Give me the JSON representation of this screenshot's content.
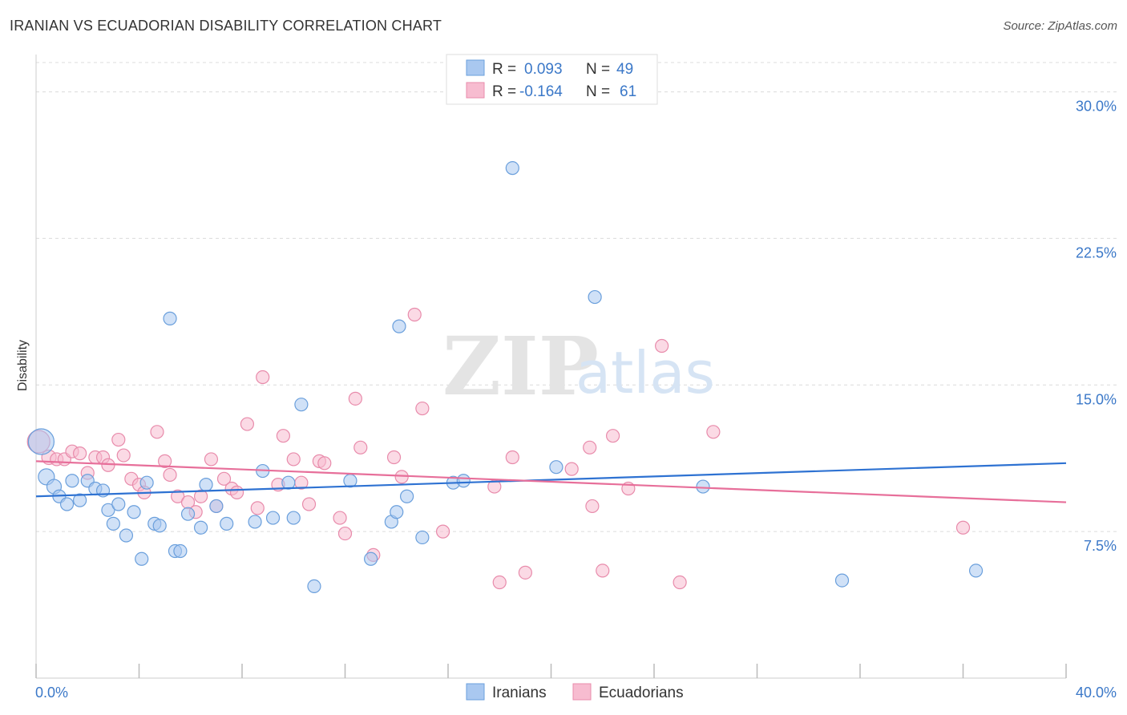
{
  "title": "IRANIAN VS ECUADORIAN DISABILITY CORRELATION CHART",
  "source": "Source: ZipAtlas.com",
  "watermark": {
    "zip": "ZIP",
    "atlas": "atlas"
  },
  "colors": {
    "blue_fill": "#a9c8f0",
    "blue_stroke": "#6a9fdc",
    "blue_line": "#2e72d2",
    "pink_fill": "#f7bcd0",
    "pink_stroke": "#e88bab",
    "pink_line": "#e76f9a",
    "tick_text": "#3b78c8"
  },
  "legend": {
    "rows": [
      {
        "r_label": "R =",
        "r_value": "0.093",
        "n_label": "N =",
        "n_value": "49"
      },
      {
        "r_label": "R =",
        "r_value": "-0.164",
        "n_label": "N =",
        "n_value": "61"
      }
    ]
  },
  "chart_data": {
    "type": "scatter",
    "xlabel": "",
    "ylabel": "Disability",
    "xlim": [
      0,
      40
    ],
    "ylim": [
      0,
      31.5
    ],
    "x_tick_labels": [
      "0.0%",
      "40.0%"
    ],
    "y_ticks": [
      7.5,
      15.0,
      22.5,
      30.0
    ],
    "y_tick_labels": [
      "7.5%",
      "15.0%",
      "22.5%",
      "30.0%"
    ],
    "grid": "horizontal dashed",
    "legend_position": "top-center",
    "series": [
      {
        "name": "Iranians",
        "color": "#a9c8f0",
        "trend": {
          "x": [
            0,
            40
          ],
          "y": [
            9.3,
            11.0
          ]
        },
        "points": [
          [
            0.2,
            12.1,
            16
          ],
          [
            0.4,
            10.3,
            10
          ],
          [
            0.7,
            9.8,
            9
          ],
          [
            0.9,
            9.3,
            8
          ],
          [
            1.2,
            8.9,
            8
          ],
          [
            1.4,
            10.1,
            8
          ],
          [
            1.7,
            9.1,
            8
          ],
          [
            2.0,
            10.1,
            8
          ],
          [
            2.3,
            9.7,
            8
          ],
          [
            2.6,
            9.6,
            8
          ],
          [
            2.8,
            8.6,
            8
          ],
          [
            3.0,
            7.9,
            8
          ],
          [
            3.2,
            8.9,
            8
          ],
          [
            3.5,
            7.3,
            8
          ],
          [
            3.8,
            8.5,
            8
          ],
          [
            4.1,
            6.1,
            8
          ],
          [
            4.3,
            10.0,
            8
          ],
          [
            4.6,
            7.9,
            8
          ],
          [
            4.8,
            7.8,
            8
          ],
          [
            5.2,
            18.4,
            8
          ],
          [
            5.4,
            6.5,
            8
          ],
          [
            5.6,
            6.5,
            8
          ],
          [
            5.9,
            8.4,
            8
          ],
          [
            6.4,
            7.7,
            8
          ],
          [
            6.6,
            9.9,
            8
          ],
          [
            7.0,
            8.8,
            8
          ],
          [
            7.4,
            7.9,
            8
          ],
          [
            8.5,
            8.0,
            8
          ],
          [
            8.8,
            10.6,
            8
          ],
          [
            9.2,
            8.2,
            8
          ],
          [
            9.8,
            10.0,
            8
          ],
          [
            10.0,
            8.2,
            8
          ],
          [
            10.3,
            14.0,
            8
          ],
          [
            10.8,
            4.7,
            8
          ],
          [
            12.2,
            10.1,
            8
          ],
          [
            13.0,
            6.1,
            8
          ],
          [
            13.8,
            8.0,
            8
          ],
          [
            14.0,
            8.5,
            8
          ],
          [
            14.1,
            18.0,
            8
          ],
          [
            14.4,
            9.3,
            8
          ],
          [
            15.0,
            7.2,
            8
          ],
          [
            16.2,
            10.0,
            8
          ],
          [
            16.6,
            10.1,
            8
          ],
          [
            18.5,
            26.1,
            8
          ],
          [
            20.2,
            10.8,
            8
          ],
          [
            21.7,
            19.5,
            8
          ],
          [
            25.9,
            9.8,
            8
          ],
          [
            31.3,
            5.0,
            8
          ],
          [
            36.5,
            5.5,
            8
          ]
        ]
      },
      {
        "name": "Ecuadorians",
        "color": "#f7bcd0",
        "trend": {
          "x": [
            0,
            40
          ],
          "y": [
            11.1,
            9.0
          ]
        },
        "points": [
          [
            0.1,
            12.1,
            14
          ],
          [
            0.5,
            11.3,
            9
          ],
          [
            0.8,
            11.2,
            8
          ],
          [
            1.1,
            11.2,
            8
          ],
          [
            1.4,
            11.6,
            8
          ],
          [
            1.7,
            11.5,
            8
          ],
          [
            2.0,
            10.5,
            8
          ],
          [
            2.3,
            11.3,
            8
          ],
          [
            2.6,
            11.3,
            8
          ],
          [
            2.8,
            10.9,
            8
          ],
          [
            3.2,
            12.2,
            8
          ],
          [
            3.4,
            11.4,
            8
          ],
          [
            3.7,
            10.2,
            8
          ],
          [
            4.0,
            9.9,
            8
          ],
          [
            4.2,
            9.5,
            8
          ],
          [
            4.7,
            12.6,
            8
          ],
          [
            5.0,
            11.1,
            8
          ],
          [
            5.2,
            10.4,
            8
          ],
          [
            5.5,
            9.3,
            8
          ],
          [
            5.9,
            9.0,
            8
          ],
          [
            6.2,
            8.5,
            8
          ],
          [
            6.4,
            9.3,
            8
          ],
          [
            6.8,
            11.2,
            8
          ],
          [
            7.0,
            8.8,
            8
          ],
          [
            7.3,
            10.2,
            8
          ],
          [
            7.6,
            9.7,
            8
          ],
          [
            7.8,
            9.5,
            8
          ],
          [
            8.2,
            13.0,
            8
          ],
          [
            8.6,
            8.7,
            8
          ],
          [
            8.8,
            15.4,
            8
          ],
          [
            9.4,
            9.9,
            8
          ],
          [
            9.6,
            12.4,
            8
          ],
          [
            10.0,
            11.2,
            8
          ],
          [
            10.3,
            10.0,
            8
          ],
          [
            10.6,
            8.9,
            8
          ],
          [
            11.0,
            11.1,
            8
          ],
          [
            11.2,
            11.0,
            8
          ],
          [
            11.8,
            8.2,
            8
          ],
          [
            12.0,
            7.4,
            8
          ],
          [
            12.4,
            14.3,
            8
          ],
          [
            12.6,
            11.8,
            8
          ],
          [
            13.1,
            6.3,
            8
          ],
          [
            13.9,
            11.3,
            8
          ],
          [
            14.2,
            10.3,
            8
          ],
          [
            14.7,
            18.6,
            8
          ],
          [
            15.0,
            13.8,
            8
          ],
          [
            15.8,
            7.5,
            8
          ],
          [
            17.8,
            9.8,
            8
          ],
          [
            18.0,
            4.9,
            8
          ],
          [
            18.5,
            11.3,
            8
          ],
          [
            19.0,
            5.4,
            8
          ],
          [
            20.8,
            10.7,
            8
          ],
          [
            21.5,
            11.8,
            8
          ],
          [
            21.6,
            8.8,
            8
          ],
          [
            22.0,
            5.5,
            8
          ],
          [
            22.4,
            12.4,
            8
          ],
          [
            23.0,
            9.7,
            8
          ],
          [
            24.3,
            17.0,
            8
          ],
          [
            25.0,
            4.9,
            8
          ],
          [
            26.3,
            12.6,
            8
          ],
          [
            36.0,
            7.7,
            8
          ]
        ]
      }
    ]
  }
}
